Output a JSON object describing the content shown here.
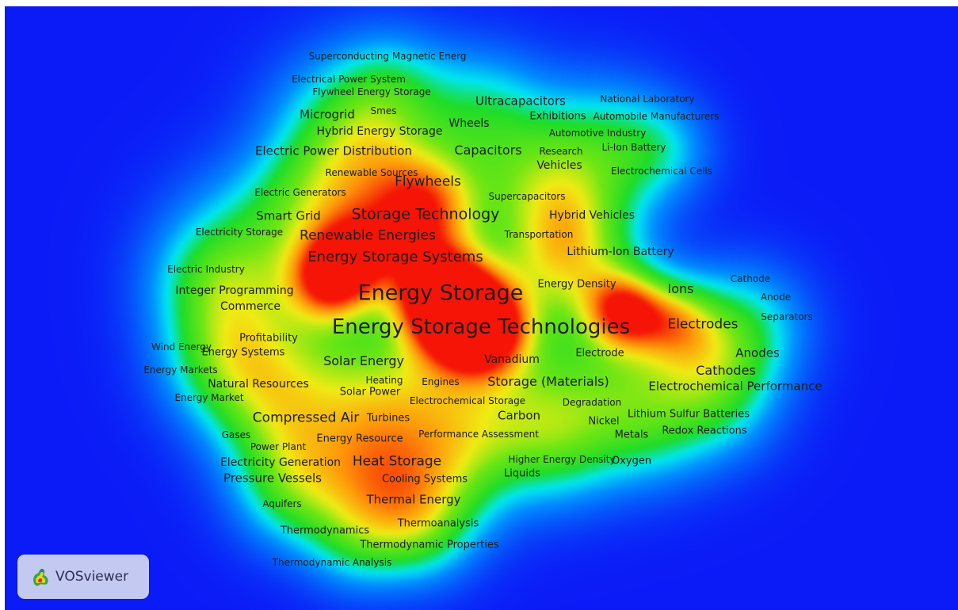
{
  "app": {
    "name": "VOSviewer",
    "logo_icon": "vosviewer-logo-icon"
  },
  "colors": {
    "background": "#0b1bf7",
    "label": "#1d1d1d"
  },
  "terms": [
    {
      "label": "Superconducting Magnetic Energ",
      "size": 12
    },
    {
      "label": "Electrical Power System",
      "size": 12
    },
    {
      "label": "Flywheel Energy Storage",
      "size": 12
    },
    {
      "label": "Smes",
      "size": 12
    },
    {
      "label": "Microgrid",
      "size": 15
    },
    {
      "label": "Ultracapacitors",
      "size": 15
    },
    {
      "label": "National Laboratory",
      "size": 12
    },
    {
      "label": "Exhibitions",
      "size": 13
    },
    {
      "label": "Automobile Manufacturers",
      "size": 12
    },
    {
      "label": "Wheels",
      "size": 14
    },
    {
      "label": "Hybrid Energy Storage",
      "size": 14
    },
    {
      "label": "Automotive Industry",
      "size": 12
    },
    {
      "label": "Li-Ion Battery",
      "size": 12
    },
    {
      "label": "Electric Power Distribution",
      "size": 15
    },
    {
      "label": "Capacitors",
      "size": 16
    },
    {
      "label": "Research",
      "size": 12
    },
    {
      "label": "Vehicles",
      "size": 14
    },
    {
      "label": "Renewable Sources",
      "size": 12
    },
    {
      "label": "Electrochemical Cells",
      "size": 12
    },
    {
      "label": "Flywheels",
      "size": 17
    },
    {
      "label": "Electric Generators",
      "size": 12
    },
    {
      "label": "Supercapacitors",
      "size": 12
    },
    {
      "label": "Smart Grid",
      "size": 15
    },
    {
      "label": "Storage Technology",
      "size": 19
    },
    {
      "label": "Hybrid Vehicles",
      "size": 14
    },
    {
      "label": "Electricity Storage",
      "size": 12
    },
    {
      "label": "Renewable Energies",
      "size": 17
    },
    {
      "label": "Transportation",
      "size": 12
    },
    {
      "label": "Lithium-Ion Battery",
      "size": 14
    },
    {
      "label": "Energy Storage Systems",
      "size": 18
    },
    {
      "label": "Electric Industry",
      "size": 12
    },
    {
      "label": "Cathode",
      "size": 12
    },
    {
      "label": "Integer Programming",
      "size": 14
    },
    {
      "label": "Energy Density",
      "size": 13
    },
    {
      "label": "Ions",
      "size": 16
    },
    {
      "label": "Energy Storage",
      "size": 27
    },
    {
      "label": "Anode",
      "size": 12
    },
    {
      "label": "Commerce",
      "size": 14
    },
    {
      "label": "Separators",
      "size": 12
    },
    {
      "label": "Energy Storage Technologies",
      "size": 26
    },
    {
      "label": "Electrodes",
      "size": 17
    },
    {
      "label": "Profitability",
      "size": 13
    },
    {
      "label": "Wind Energy",
      "size": 12
    },
    {
      "label": "Energy Systems",
      "size": 13
    },
    {
      "label": "Anodes",
      "size": 15
    },
    {
      "label": "Electrode",
      "size": 13
    },
    {
      "label": "Solar Energy",
      "size": 16
    },
    {
      "label": "Vanadium",
      "size": 14
    },
    {
      "label": "Cathodes",
      "size": 16
    },
    {
      "label": "Energy Markets",
      "size": 12
    },
    {
      "label": "Natural Resources",
      "size": 14
    },
    {
      "label": "Heating",
      "size": 12
    },
    {
      "label": "Engines",
      "size": 12
    },
    {
      "label": "Storage (Materials)",
      "size": 16
    },
    {
      "label": "Electrochemical Performance",
      "size": 15
    },
    {
      "label": "Solar Power",
      "size": 13
    },
    {
      "label": "Energy Market",
      "size": 12
    },
    {
      "label": "Electrochemical Storage",
      "size": 12
    },
    {
      "label": "Degradation",
      "size": 12
    },
    {
      "label": "Compressed Air",
      "size": 17
    },
    {
      "label": "Turbines",
      "size": 13
    },
    {
      "label": "Carbon",
      "size": 15
    },
    {
      "label": "Lithium Sulfur Batteries",
      "size": 13
    },
    {
      "label": "Nickel",
      "size": 13
    },
    {
      "label": "Gases",
      "size": 12
    },
    {
      "label": "Performance Assessment",
      "size": 12
    },
    {
      "label": "Redox Reactions",
      "size": 13
    },
    {
      "label": "Energy Resource",
      "size": 13
    },
    {
      "label": "Metals",
      "size": 13
    },
    {
      "label": "Power Plant",
      "size": 12
    },
    {
      "label": "Electricity Generation",
      "size": 14
    },
    {
      "label": "Heat Storage",
      "size": 17
    },
    {
      "label": "Higher Energy Density",
      "size": 12
    },
    {
      "label": "Oxygen",
      "size": 13
    },
    {
      "label": "Liquids",
      "size": 13
    },
    {
      "label": "Pressure Vessels",
      "size": 15
    },
    {
      "label": "Cooling Systems",
      "size": 13
    },
    {
      "label": "Aquifers",
      "size": 12
    },
    {
      "label": "Thermal Energy",
      "size": 15
    },
    {
      "label": "Thermodynamics",
      "size": 13
    },
    {
      "label": "Thermoanalysis",
      "size": 13
    },
    {
      "label": "Thermodynamic Properties",
      "size": 13
    },
    {
      "label": "Thermodynamic Analysis",
      "size": 12
    }
  ]
}
